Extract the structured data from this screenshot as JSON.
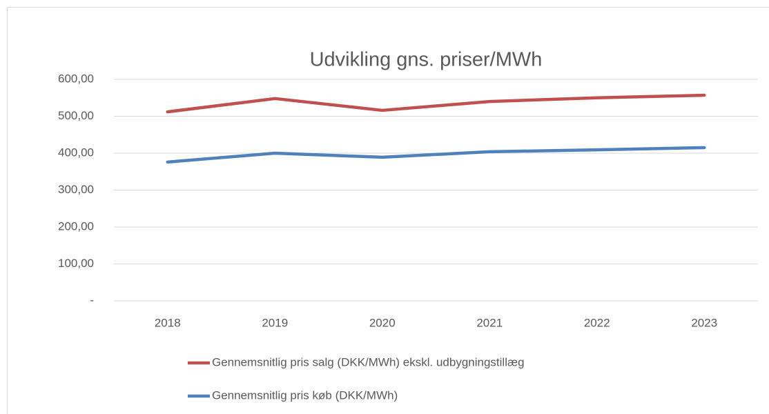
{
  "chart_data": {
    "type": "line",
    "title": "Udvikling gns. priser/MWh",
    "categories": [
      "2018",
      "2019",
      "2020",
      "2021",
      "2022",
      "2023"
    ],
    "series": [
      {
        "name": "Gennemsnitlig pris salg (DKK/MWh) ekskl. udbygningstillæg",
        "color": "#c0504d",
        "values": [
          512,
          548,
          516,
          540,
          550,
          557
        ]
      },
      {
        "name": "Gennemsnitlig pris køb (DKK/MWh)",
        "color": "#4f81bd",
        "values": [
          376,
          400,
          389,
          404,
          409,
          415
        ]
      }
    ],
    "ylim": [
      0,
      600
    ],
    "yticks": [
      {
        "value": 0,
        "label": "-"
      },
      {
        "value": 100,
        "label": "100,00"
      },
      {
        "value": 200,
        "label": "200,00"
      },
      {
        "value": 300,
        "label": "300,00"
      },
      {
        "value": 400,
        "label": "400,00"
      },
      {
        "value": 500,
        "label": "500,00"
      },
      {
        "value": 600,
        "label": "600,00"
      }
    ],
    "grid": true
  }
}
